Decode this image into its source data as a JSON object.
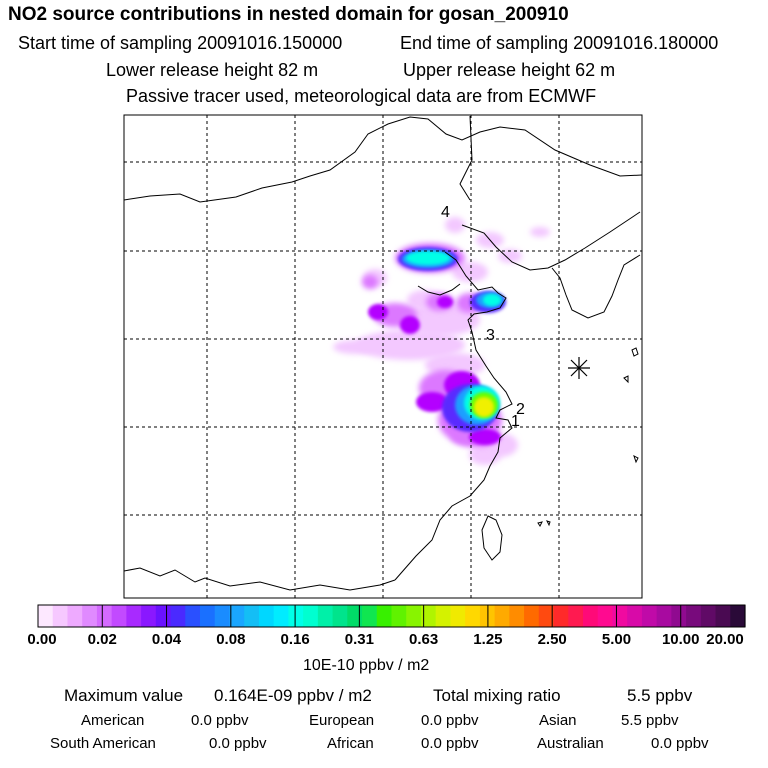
{
  "title": "NO2 source contributions in nested domain for gosan_200910",
  "sampling": {
    "start_label": "Start time of sampling 20091016.150000",
    "end_label": "End time of sampling 20091016.180000"
  },
  "release": {
    "lower_label": "Lower release height   82 m",
    "upper_label": "Upper release height   62 m"
  },
  "note": "Passive tracer used, meteorological data are from ECMWF",
  "map": {
    "receptor_marker": "asterisk-icon",
    "labels": [
      "4",
      "3",
      "2",
      "1"
    ],
    "colors": {
      "tracer": [
        "#ffffff",
        "#f3c8ff",
        "#dc78ff",
        "#b400ff",
        "#5a2aff",
        "#1f9fff",
        "#00ffe6",
        "#66ff00",
        "#f0f000",
        "#ffa500",
        "#ff2a2a",
        "#ff1493",
        "#9c00a0",
        "#3a004a"
      ]
    }
  },
  "colorbar": {
    "ticks": [
      "0.00",
      "0.02",
      "0.04",
      "0.08",
      "0.16",
      "0.31",
      "0.63",
      "1.25",
      "2.50",
      "5.00",
      "10.00",
      "20.00"
    ],
    "units": "10E-10 ppbv / m2",
    "colors": [
      "#fde8ff",
      "#f6c8ff",
      "#eeaaff",
      "#e08aff",
      "#d46aff",
      "#c24aff",
      "#a82aff",
      "#8a18ff",
      "#6a12ff",
      "#4a2aff",
      "#2a50ff",
      "#1a70ff",
      "#1a8cff",
      "#1aa6ff",
      "#14bef5",
      "#00d7ff",
      "#00ecff",
      "#00ffe8",
      "#00ffd0",
      "#00f0a8",
      "#00e48c",
      "#00dc68",
      "#10e650",
      "#38f000",
      "#60f200",
      "#88f400",
      "#b0f400",
      "#d4f200",
      "#f0ea00",
      "#ffd800",
      "#ffc400",
      "#ffaa00",
      "#ff8c00",
      "#ff6a00",
      "#ff4a10",
      "#ff2a2a",
      "#ff1a50",
      "#ff0a78",
      "#ff0a90",
      "#f00aa0",
      "#d80aa8",
      "#c00aa8",
      "#a80aa0",
      "#900a90",
      "#780a7c",
      "#600a66",
      "#4a0a52",
      "#2a0a38"
    ]
  },
  "summary": {
    "max_label": "Maximum value",
    "max_value": "0.164E-09 ppbv / m2",
    "total_label": "Total mixing ratio",
    "total_value": "5.5 ppbv"
  },
  "regions": [
    {
      "name": "American",
      "value": "0.0 ppbv"
    },
    {
      "name": "European",
      "value": "0.0 ppbv"
    },
    {
      "name": "Asian",
      "value": "5.5 ppbv"
    },
    {
      "name": "South American",
      "value": "0.0 ppbv"
    },
    {
      "name": "African",
      "value": "0.0 ppbv"
    },
    {
      "name": "Australian",
      "value": "0.0 ppbv"
    }
  ]
}
